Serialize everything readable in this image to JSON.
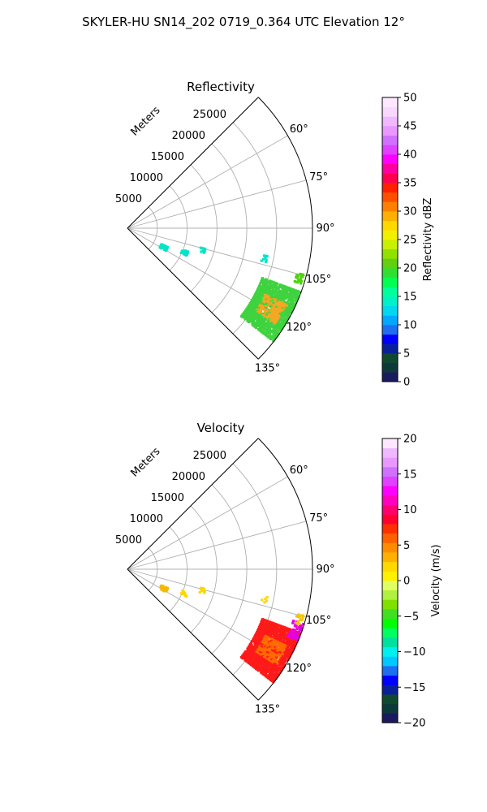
{
  "figure": {
    "suptitle": "SKYLER-HU  SN14_202  0719_0.364 UTC Elevation 12°"
  },
  "chart_data": [
    {
      "type": "heatmap",
      "projection": "polar-sector",
      "title": "Reflectivity",
      "radial_label": "Meters",
      "radial_ticks": [
        "5000",
        "10000",
        "15000",
        "20000",
        "25000"
      ],
      "radial_values": [
        5000,
        10000,
        15000,
        20000,
        25000
      ],
      "rmax": 31000,
      "theta_range_deg": [
        45,
        135
      ],
      "theta_grid_deg": [
        45,
        60,
        75,
        90,
        105,
        120,
        135
      ],
      "theta_tick_labels": [
        {
          "deg": 60,
          "label": "60°"
        },
        {
          "deg": 75,
          "label": "75°"
        },
        {
          "deg": 90,
          "label": "90°"
        },
        {
          "deg": 105,
          "label": "105°"
        },
        {
          "deg": 120,
          "label": "120°"
        },
        {
          "deg": 135,
          "label": "135°"
        }
      ],
      "grid": true,
      "colorbar": {
        "label": "Reflectivity dBZ",
        "range": [
          0,
          50
        ],
        "ticks": [
          "0",
          "5",
          "10",
          "15",
          "20",
          "25",
          "30",
          "35",
          "40",
          "45",
          "50"
        ],
        "tick_values": [
          0,
          5,
          10,
          15,
          20,
          25,
          30,
          35,
          40,
          45,
          50
        ]
      },
      "echoes": [
        {
          "theta_deg": [
            110,
            128
          ],
          "range_m": [
            24000,
            31000
          ],
          "value_range": [
            18,
            38
          ],
          "color": "#3fd33f",
          "core_color": "#f5a623"
        },
        {
          "theta_deg": [
            104.5,
            108
          ],
          "range_m": [
            29300,
            30600
          ],
          "value_range": [
            18,
            22
          ],
          "color": "#4ed40e"
        },
        {
          "theta_deg": [
            101,
            104
          ],
          "range_m": [
            23000,
            24000
          ],
          "value_range": [
            12,
            14
          ],
          "color": "#00e5c8"
        },
        {
          "theta_deg": [
            104,
            108
          ],
          "range_m": [
            12600,
            13600
          ],
          "value_range": [
            12,
            14
          ],
          "color": "#00e5c8"
        },
        {
          "theta_deg": [
            111,
            115
          ],
          "range_m": [
            9800,
            11000
          ],
          "value_range": [
            12,
            14
          ],
          "color": "#00e5c8"
        },
        {
          "theta_deg": [
            115,
            121
          ],
          "range_m": [
            6200,
            7600
          ],
          "value_range": [
            12,
            14
          ],
          "color": "#00e5c8"
        }
      ]
    },
    {
      "type": "heatmap",
      "projection": "polar-sector",
      "title": "Velocity",
      "radial_label": "Meters",
      "radial_ticks": [
        "5000",
        "10000",
        "15000",
        "20000",
        "25000"
      ],
      "radial_values": [
        5000,
        10000,
        15000,
        20000,
        25000
      ],
      "rmax": 31000,
      "theta_range_deg": [
        45,
        135
      ],
      "theta_grid_deg": [
        45,
        60,
        75,
        90,
        105,
        120,
        135
      ],
      "theta_tick_labels": [
        {
          "deg": 60,
          "label": "60°"
        },
        {
          "deg": 75,
          "label": "75°"
        },
        {
          "deg": 90,
          "label": "90°"
        },
        {
          "deg": 105,
          "label": "105°"
        },
        {
          "deg": 120,
          "label": "120°"
        },
        {
          "deg": 135,
          "label": "135°"
        }
      ],
      "grid": true,
      "colorbar": {
        "label": "Velocity (m/s)",
        "range": [
          -20,
          20
        ],
        "ticks": [
          "−20",
          "−15",
          "−10",
          "−5",
          "0",
          "5",
          "10",
          "15",
          "20"
        ],
        "tick_values": [
          -20,
          -15,
          -10,
          -5,
          0,
          5,
          10,
          15,
          20
        ]
      },
      "echoes": [
        {
          "theta_deg": [
            110,
            128
          ],
          "range_m": [
            24000,
            31000
          ],
          "value_range": [
            6,
            12
          ],
          "color": "#ff1a1a",
          "core_color": "#ff6a00"
        },
        {
          "theta_deg": [
            107,
            113
          ],
          "range_m": [
            29000,
            31000
          ],
          "value_range": [
            14,
            17
          ],
          "color": "#e600e6"
        },
        {
          "theta_deg": [
            104.5,
            108
          ],
          "range_m": [
            29300,
            30600
          ],
          "value_range": [
            2,
            4
          ],
          "color": "#f5c400"
        },
        {
          "theta_deg": [
            101,
            104
          ],
          "range_m": [
            23000,
            24000
          ],
          "value_range": [
            0,
            2
          ],
          "color": "#ffd700"
        },
        {
          "theta_deg": [
            104,
            108
          ],
          "range_m": [
            12600,
            13600
          ],
          "value_range": [
            0,
            2
          ],
          "color": "#ffd700"
        },
        {
          "theta_deg": [
            111,
            115
          ],
          "range_m": [
            9800,
            11000
          ],
          "value_range": [
            0,
            2
          ],
          "color": "#ffd700"
        },
        {
          "theta_deg": [
            115,
            121
          ],
          "range_m": [
            6200,
            7600
          ],
          "value_range": [
            0,
            3
          ],
          "color": "#f5b800"
        }
      ]
    }
  ]
}
